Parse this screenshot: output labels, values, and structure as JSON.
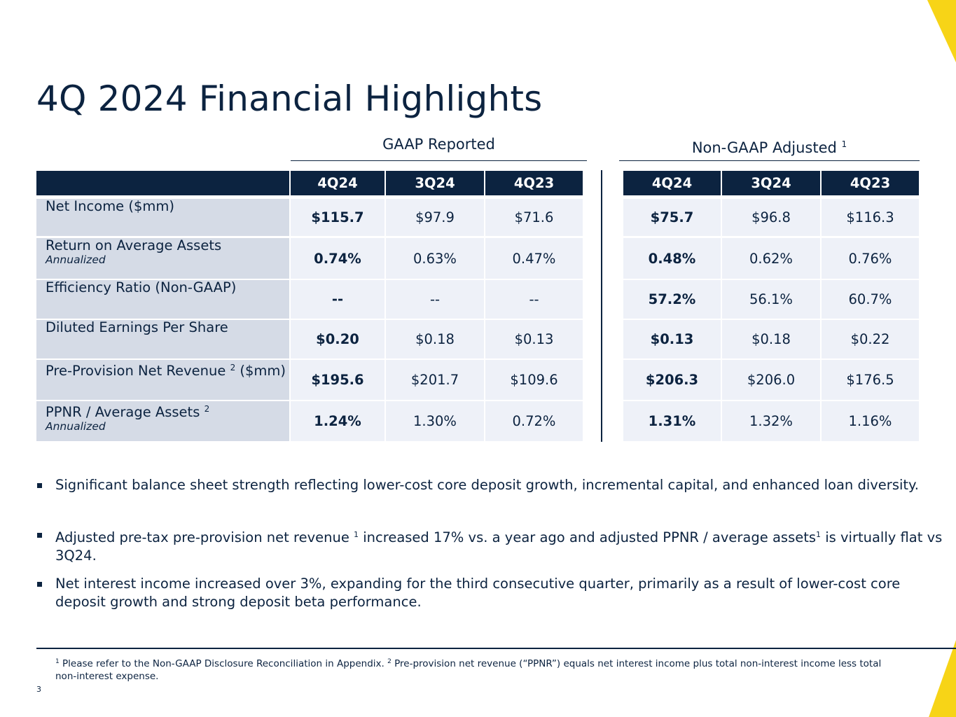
{
  "title": "4Q 2024 Financial Highlights",
  "colors": {
    "navy": "#0c2340",
    "label_bg": "#d5dbe6",
    "cell_bg": "#eef1f8",
    "accent": "#f7d417"
  },
  "groups": {
    "gaap": {
      "label": "GAAP Reported"
    },
    "nongaap": {
      "label": "Non-GAAP Adjusted",
      "sup": "1"
    }
  },
  "columns": [
    "4Q24",
    "3Q24",
    "4Q23"
  ],
  "rows": [
    {
      "label": "Net Income ($mm)",
      "sup": "",
      "suffix": "",
      "sub": "",
      "gaap": [
        "$115.7",
        "$97.9",
        "$71.6"
      ],
      "nongaap": [
        "$75.7",
        "$96.8",
        "$116.3"
      ]
    },
    {
      "label": "Return on Average Assets",
      "sup": "",
      "suffix": "",
      "sub": "Annualized",
      "gaap": [
        "0.74%",
        "0.63%",
        "0.47%"
      ],
      "nongaap": [
        "0.48%",
        "0.62%",
        "0.76%"
      ]
    },
    {
      "label": "Efficiency Ratio (Non-GAAP)",
      "sup": "",
      "suffix": "",
      "sub": "",
      "gaap": [
        "--",
        "--",
        "--"
      ],
      "nongaap": [
        "57.2%",
        "56.1%",
        "60.7%"
      ]
    },
    {
      "label": "Diluted Earnings Per Share",
      "sup": "",
      "suffix": "",
      "sub": "",
      "gaap": [
        "$0.20",
        "$0.18",
        "$0.13"
      ],
      "nongaap": [
        "$0.13",
        "$0.18",
        "$0.22"
      ]
    },
    {
      "label": "Pre-Provision Net Revenue",
      "sup": "2",
      "suffix": " ($mm)",
      "sub": "",
      "gaap": [
        "$195.6",
        "$201.7",
        "$109.6"
      ],
      "nongaap": [
        "$206.3",
        "$206.0",
        "$176.5"
      ]
    },
    {
      "label": "PPNR / Average Assets",
      "sup": "2",
      "suffix": "",
      "sub": "Annualized",
      "gaap": [
        "1.24%",
        "1.30%",
        "0.72%"
      ],
      "nongaap": [
        "1.31%",
        "1.32%",
        "1.16%"
      ]
    }
  ],
  "bullets": [
    {
      "parts": [
        {
          "t": "Significant balance sheet strength reflecting lower-cost core deposit growth, incremental capital, and enhanced loan diversity."
        }
      ]
    },
    {
      "parts": [
        {
          "t": "Adjusted pre-tax pre-provision net revenue "
        },
        {
          "sup": "1"
        },
        {
          "t": " increased 17% vs. a year ago and adjusted PPNR / average assets"
        },
        {
          "sup": "1"
        },
        {
          "t": " is virtually flat vs 3Q24."
        }
      ]
    },
    {
      "parts": [
        {
          "t": "Net interest income increased over 3%, expanding for the third consecutive quarter, primarily as a result of lower-cost core deposit growth and strong deposit beta performance."
        }
      ]
    }
  ],
  "footnote": {
    "sup1": "1",
    "text1": " Please refer to the Non-GAAP Disclosure Reconciliation in Appendix.  ",
    "sup2": "2",
    "text2": " Pre-provision net revenue (“PPNR”) equals net interest income plus total non-interest income less total non-interest expense."
  },
  "page_number": "3"
}
